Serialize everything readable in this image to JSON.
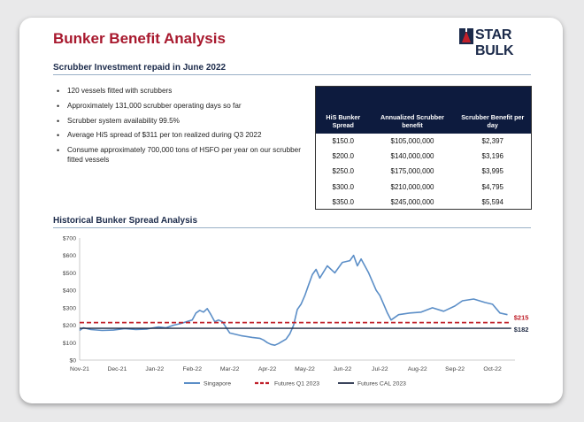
{
  "header": {
    "title": "Bunker Benefit Analysis",
    "logo_text": "STAR BULK"
  },
  "investment": {
    "heading": "Scrubber Investment repaid in June 2022",
    "bullets": [
      "120 vessels fitted with scrubbers",
      "Approximately 131,000 scrubber operating days so far",
      "Scrubber system availability 99.5%",
      "Average HiS spread of $311 per ton realized during Q3 2022",
      "Consume approximately 700,000 tons of HSFO per year on our scrubber fitted vessels"
    ]
  },
  "table": {
    "headers": [
      "HiS Bunker Spread",
      "Annualized Scrubber benefit",
      "Scrubber Benefit per day"
    ],
    "rows": [
      [
        "$150.0",
        "$105,000,000",
        "$2,397"
      ],
      [
        "$200.0",
        "$140,000,000",
        "$3,196"
      ],
      [
        "$250.0",
        "$175,000,000",
        "$3,995"
      ],
      [
        "$300.0",
        "$210,000,000",
        "$4,795"
      ],
      [
        "$350.0",
        "$245,000,000",
        "$5,594"
      ]
    ]
  },
  "history": {
    "heading": "Historical Bunker Spread Analysis"
  },
  "colors": {
    "title": "#a8192e",
    "navy": "#0d1b3e",
    "singapore": "#5b8ec7",
    "futures_q1": "#c0202a",
    "futures_cal": "#1f2a44"
  },
  "chart_data": {
    "type": "line",
    "title": "Historical Bunker Spread Analysis",
    "ylim": [
      0,
      700
    ],
    "y_ticks": [
      "$0",
      "$100",
      "$200",
      "$300",
      "$400",
      "$500",
      "$600",
      "$700"
    ],
    "y_tick_values": [
      0,
      100,
      200,
      300,
      400,
      500,
      600,
      700
    ],
    "x_ticks": [
      "Nov-21",
      "Dec-21",
      "Jan-22",
      "Feb-22",
      "Mar-22",
      "Apr-22",
      "May-22",
      "Jun-22",
      "Jul-22",
      "Aug-22",
      "Sep-22",
      "Oct-22"
    ],
    "x_range": [
      0,
      11.6
    ],
    "series": [
      {
        "name": "Singapore",
        "style": "solid",
        "x": [
          0,
          0.1,
          0.3,
          0.6,
          0.9,
          1.2,
          1.5,
          1.8,
          2.1,
          2.3,
          2.5,
          2.7,
          3.0,
          3.1,
          3.2,
          3.3,
          3.4,
          3.5,
          3.6,
          3.7,
          3.8,
          4.0,
          4.3,
          4.6,
          4.8,
          4.9,
          5.0,
          5.1,
          5.2,
          5.3,
          5.5,
          5.6,
          5.7,
          5.8,
          5.9,
          6.0,
          6.1,
          6.2,
          6.3,
          6.4,
          6.6,
          6.8,
          7.0,
          7.2,
          7.3,
          7.4,
          7.5,
          7.7,
          7.9,
          8.0,
          8.1,
          8.2,
          8.3,
          8.5,
          8.8,
          9.1,
          9.4,
          9.7,
          10.0,
          10.2,
          10.5,
          10.8,
          11.0,
          11.2,
          11.4
        ],
        "values": [
          170,
          185,
          175,
          170,
          172,
          180,
          175,
          178,
          190,
          185,
          200,
          210,
          230,
          270,
          285,
          275,
          295,
          260,
          220,
          230,
          220,
          155,
          140,
          130,
          125,
          115,
          100,
          90,
          85,
          95,
          120,
          150,
          200,
          290,
          320,
          370,
          430,
          490,
          520,
          470,
          540,
          500,
          560,
          570,
          600,
          540,
          580,
          500,
          400,
          370,
          320,
          270,
          230,
          260,
          270,
          275,
          300,
          280,
          310,
          340,
          350,
          330,
          320,
          270,
          260
        ]
      },
      {
        "name": "Futures Q1 2023",
        "style": "dashed",
        "x": [
          0,
          11.5
        ],
        "values": [
          215,
          215
        ]
      },
      {
        "name": "Futures CAL 2023",
        "style": "solid",
        "x": [
          0,
          11.5
        ],
        "values": [
          182,
          182
        ]
      }
    ],
    "annotations": [
      "$215",
      "$182"
    ],
    "legend": [
      "Singapore",
      "Futures Q1 2023",
      "Futures CAL 2023"
    ],
    "legend_position": "bottom-center"
  }
}
